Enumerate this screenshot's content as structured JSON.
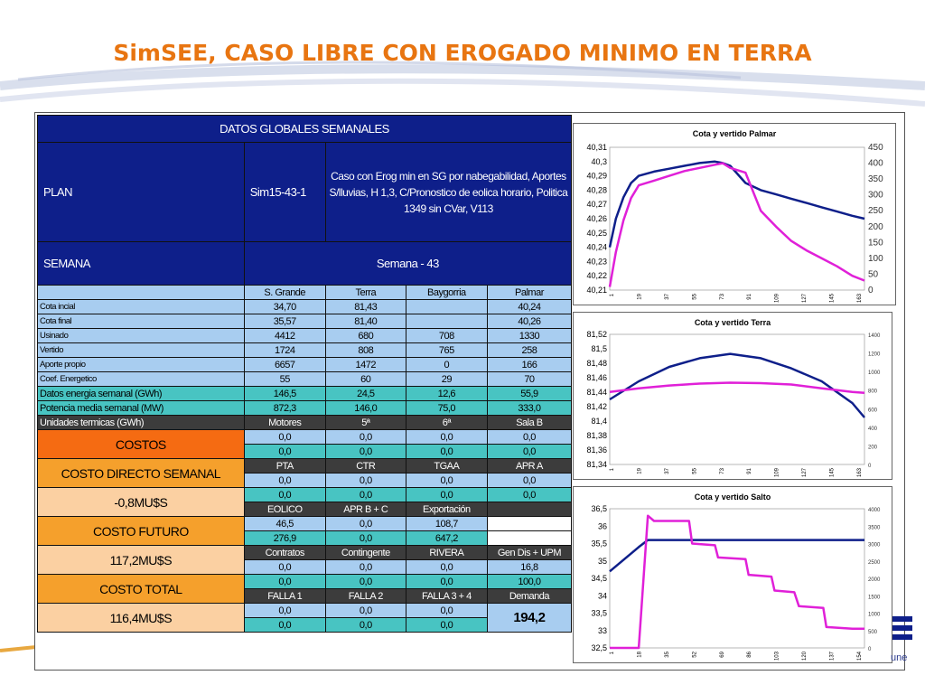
{
  "slide": {
    "title": "SimSEE, CASO LIBRE CON EROGADO MINIMO EN TERRA",
    "brand_fragment": "une",
    "accent": "#e87511",
    "navy": "#0e1f8a"
  },
  "table": {
    "header": "DATOS GLOBALES SEMANALES",
    "plan_label": "PLAN",
    "plan_code": "Sim15-43-1",
    "plan_desc": "Caso con  Erog min en SG por nabegabilidad,  Aportes S/lluvias, H 1,3, C/Pronostico de eolica horario, Politica 1349 sin CVar, V113",
    "semana_label": "SEMANA",
    "semana_value": "Semana - 43",
    "columns": [
      "S. Grande",
      "Terra",
      "Baygorria",
      "Palmar"
    ],
    "rows": [
      {
        "label": "Cota incial",
        "values": [
          "34,70",
          "81,43",
          "",
          "40,24"
        ]
      },
      {
        "label": "Cota final",
        "values": [
          "35,57",
          "81,40",
          "",
          "40,26"
        ]
      },
      {
        "label": "Usinado",
        "values": [
          "4412",
          "680",
          "708",
          "1330"
        ]
      },
      {
        "label": "Vertido",
        "values": [
          "1724",
          "808",
          "765",
          "258"
        ]
      },
      {
        "label": "Aporte propio",
        "values": [
          "6657",
          "1472",
          "0",
          "166"
        ]
      },
      {
        "label": "Coef. Energetico",
        "values": [
          "55",
          "60",
          "29",
          "70"
        ]
      }
    ],
    "energia_label": "Datos energia semanal  (GWh)",
    "energia_values": [
      "146,5",
      "24,5",
      "12,6",
      "55,9"
    ],
    "potencia_label": "Potencia media semanal (MW)",
    "potencia_values": [
      "872,3",
      "146,0",
      "75,0",
      "333,0"
    ],
    "termicas_label": "Unidades termicas (GWh)",
    "termicas_cols": [
      "Motores",
      "5ª",
      "6ª",
      "Sala B"
    ],
    "termicas_r1": [
      "0,0",
      "0,0",
      "0,0",
      "0,0"
    ],
    "termicas_r2": [
      "0,0",
      "0,0",
      "0,0",
      "0,0"
    ],
    "costos_label": "COSTOS",
    "cds_label": "COSTO DIRECTO SEMANAL",
    "cds_value": "-0,8MU$S",
    "cf_label": "COSTO FUTURO",
    "cf_value": "117,2MU$S",
    "ct_label": "COSTO TOTAL",
    "ct_value": "116,4MU$S",
    "g1_cols": [
      "PTA",
      "CTR",
      "TGAA",
      "APR A"
    ],
    "g1_r1": [
      "0,0",
      "0,0",
      "0,0",
      "0,0"
    ],
    "g1_r2": [
      "0,0",
      "0,0",
      "0,0",
      "0,0"
    ],
    "g2_cols": [
      "EOLICO",
      "APR B + C",
      "Exportación"
    ],
    "g2_r1": [
      "46,5",
      "0,0",
      "108,7",
      ""
    ],
    "g2_r2": [
      "276,9",
      "0,0",
      "647,2",
      ""
    ],
    "g3_cols": [
      "Contratos",
      "Contingente",
      "RIVERA",
      "Gen Dis + UPM"
    ],
    "g3_r1": [
      "0,0",
      "0,0",
      "0,0",
      "16,8"
    ],
    "g3_r2": [
      "0,0",
      "0,0",
      "0,0",
      "100,0"
    ],
    "g4_cols": [
      "FALLA 1",
      "FALLA 2",
      "FALLA 3 + 4",
      "Demanda"
    ],
    "g4_r1": [
      "0,0",
      "0,0",
      "0,0"
    ],
    "g4_r2": [
      "0,0",
      "0,0",
      "0,0"
    ],
    "demanda_value": "194,2"
  },
  "chart_data": [
    {
      "type": "line",
      "title": "Cota y vertido Palmar",
      "x_ticks": [
        "1",
        "19",
        "37",
        "55",
        "73",
        "91",
        "109",
        "127",
        "145",
        "163"
      ],
      "y_ticks": [
        "40,31",
        "40,3",
        "40,29",
        "40,28",
        "40,27",
        "40,26",
        "40,25",
        "40,24",
        "40,23",
        "40,22",
        "40,21"
      ],
      "ylim": [
        40.21,
        40.31
      ],
      "y2_ticks": [
        "450",
        "400",
        "350",
        "300",
        "250",
        "200",
        "150",
        "100",
        "50",
        "0"
      ],
      "y2lim": [
        0,
        450
      ],
      "x": [
        1,
        5,
        10,
        15,
        20,
        30,
        40,
        50,
        60,
        70,
        75,
        80,
        90,
        100,
        110,
        120,
        130,
        140,
        150,
        160,
        168
      ],
      "series": [
        {
          "color": "#0e1f8a",
          "axis": "left",
          "values": [
            40.24,
            40.26,
            40.275,
            40.285,
            40.29,
            40.293,
            40.295,
            40.297,
            40.299,
            40.3,
            40.299,
            40.297,
            40.285,
            40.28,
            40.277,
            40.274,
            40.271,
            40.268,
            40.265,
            40.262,
            40.26
          ]
        },
        {
          "color": "#e020d8",
          "axis": "right",
          "values": [
            10,
            120,
            220,
            290,
            330,
            345,
            360,
            375,
            385,
            395,
            400,
            385,
            370,
            250,
            200,
            155,
            125,
            100,
            75,
            45,
            30
          ]
        }
      ]
    },
    {
      "type": "line",
      "title": "Cota y vertido Terra",
      "x_ticks": [
        "1",
        "19",
        "37",
        "55",
        "73",
        "91",
        "109",
        "127",
        "145",
        "163"
      ],
      "y_ticks": [
        "81,52",
        "81,5",
        "81,48",
        "81,46",
        "81,44",
        "81,42",
        "81,4",
        "81,38",
        "81,36",
        "81,34"
      ],
      "ylim": [
        81.34,
        81.52
      ],
      "y2_ticks": [
        "1400",
        "1200",
        "1000",
        "800",
        "600",
        "400",
        "200",
        "0"
      ],
      "y2lim": [
        0,
        1400
      ],
      "x": [
        1,
        20,
        40,
        60,
        80,
        100,
        120,
        140,
        160,
        168
      ],
      "series": [
        {
          "color": "#0e1f8a",
          "axis": "left",
          "values": [
            81.43,
            81.455,
            81.475,
            81.487,
            81.493,
            81.487,
            81.473,
            81.455,
            81.425,
            81.405
          ]
        },
        {
          "color": "#e020d8",
          "axis": "right",
          "values": [
            780,
            820,
            850,
            870,
            880,
            875,
            860,
            820,
            780,
            770
          ]
        }
      ]
    },
    {
      "type": "line",
      "title": "Cota y vertido Salto",
      "x_ticks": [
        "1",
        "18",
        "35",
        "52",
        "69",
        "86",
        "103",
        "120",
        "137",
        "154"
      ],
      "y_ticks": [
        "36,5",
        "36",
        "35,5",
        "35",
        "34,5",
        "34",
        "33,5",
        "33",
        "32,5"
      ],
      "ylim": [
        32.5,
        36.5
      ],
      "y2_ticks": [
        "4000",
        "3500",
        "3000",
        "2500",
        "2000",
        "1500",
        "1000",
        "500",
        "0"
      ],
      "y2lim": [
        0,
        4000
      ],
      "x": [
        1,
        20,
        26,
        30,
        32,
        36,
        53,
        55,
        70,
        72,
        90,
        92,
        107,
        109,
        122,
        125,
        141,
        143,
        160,
        168
      ],
      "series": [
        {
          "color": "#0e1f8a",
          "axis": "left",
          "values": [
            34.7,
            35.4,
            35.6,
            35.6,
            35.6,
            35.6,
            35.6,
            35.6,
            35.6,
            35.6,
            35.6,
            35.6,
            35.6,
            35.6,
            35.6,
            35.6,
            35.6,
            35.6,
            35.6,
            35.6
          ]
        },
        {
          "color": "#e020d8",
          "axis": "right",
          "values": [
            0,
            0,
            3800,
            3650,
            3650,
            3650,
            3650,
            3000,
            2950,
            2600,
            2550,
            2100,
            2050,
            1650,
            1600,
            1200,
            1150,
            600,
            550,
            550
          ]
        }
      ]
    }
  ]
}
